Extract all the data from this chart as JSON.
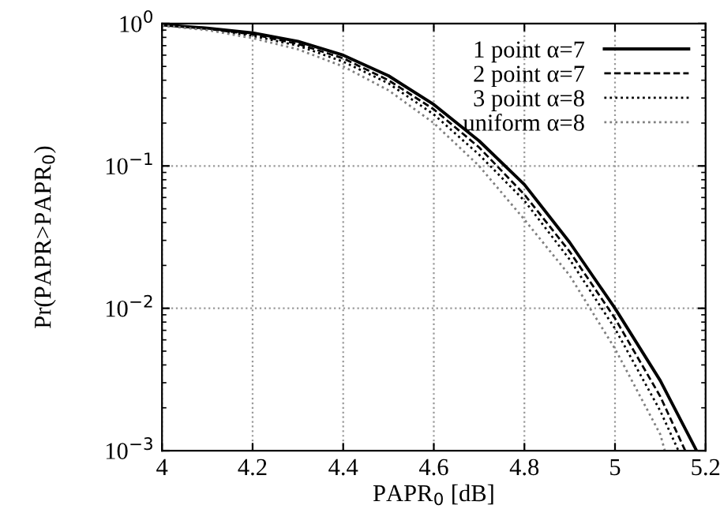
{
  "chart_data": {
    "type": "line",
    "xlabel": "PAPR$_{0}$ [dB]",
    "ylabel": "Pr(PAPR>PAPR$_{0}$)",
    "log": "y",
    "grid": true,
    "legend": "top right",
    "xlim": [
      4,
      5.2
    ],
    "xticks": [
      4,
      4.2,
      4.4,
      4.6,
      4.8,
      5,
      5.2
    ],
    "ylim": [
      0.001,
      1
    ],
    "yticks": [
      {
        "value": 1,
        "label": "10$^{0}$"
      },
      {
        "value": 0.1,
        "label": "10$^{−1}$"
      },
      {
        "value": 0.01,
        "label": "10$^{−2}$"
      },
      {
        "value": 0.001,
        "label": "10$^{−3}$"
      }
    ],
    "series": [
      {
        "name": "1 point α=7",
        "color": "#000000",
        "line_style": "solid",
        "x": [
          4.0,
          4.1,
          4.2,
          4.3,
          4.4,
          4.5,
          4.6,
          4.7,
          4.8,
          4.9,
          5.0,
          5.1,
          5.18
        ],
        "values": [
          0.98,
          0.93,
          0.86,
          0.75,
          0.6,
          0.43,
          0.27,
          0.15,
          0.074,
          0.029,
          0.01,
          0.0031,
          0.001
        ]
      },
      {
        "name": "2 point α=7",
        "color": "#000000",
        "line_style": "dashed",
        "x": [
          4.0,
          4.1,
          4.2,
          4.3,
          4.4,
          4.5,
          4.6,
          4.7,
          4.8,
          4.9,
          5.0,
          5.1,
          5.155
        ],
        "values": [
          0.98,
          0.92,
          0.84,
          0.72,
          0.57,
          0.4,
          0.25,
          0.135,
          0.063,
          0.025,
          0.0085,
          0.0024,
          0.001
        ]
      },
      {
        "name": "3 point α=8",
        "color": "#000000",
        "line_style": "dotted",
        "x": [
          4.0,
          4.1,
          4.2,
          4.3,
          4.4,
          4.5,
          4.6,
          4.7,
          4.8,
          4.9,
          5.0,
          5.1,
          5.14
        ],
        "values": [
          0.97,
          0.91,
          0.82,
          0.7,
          0.54,
          0.38,
          0.23,
          0.12,
          0.057,
          0.022,
          0.0072,
          0.0019,
          0.001
        ]
      },
      {
        "name": "uniform α=8",
        "color": "#808080",
        "line_style": "dotted",
        "x": [
          4.0,
          4.1,
          4.2,
          4.3,
          4.4,
          4.5,
          4.6,
          4.7,
          4.8,
          4.9,
          5.0,
          5.1,
          5.11
        ],
        "values": [
          0.97,
          0.9,
          0.79,
          0.66,
          0.5,
          0.34,
          0.2,
          0.1,
          0.042,
          0.017,
          0.0052,
          0.0013,
          0.001
        ]
      }
    ]
  }
}
